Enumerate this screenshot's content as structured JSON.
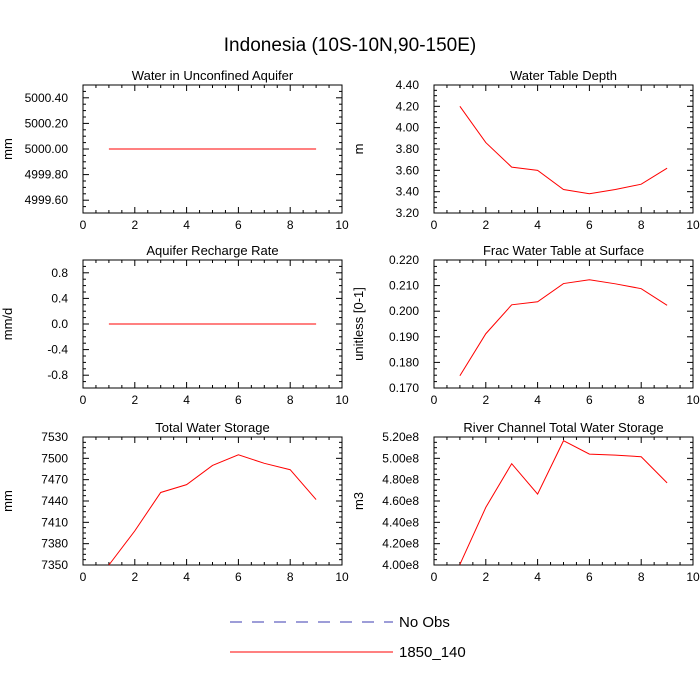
{
  "figure": {
    "title": "Indonesia (10S-10N,90-150E)"
  },
  "legend": {
    "entries": [
      {
        "name": "No Obs",
        "color": "#3b3bb0",
        "dash": "dashed"
      },
      {
        "name": "1850_140",
        "color": "#ff0000",
        "dash": "solid"
      }
    ]
  },
  "chart_data": [
    {
      "type": "line",
      "title": "Water in Unconfined Aquifer",
      "ylabel": "mm",
      "xlim": [
        0,
        10
      ],
      "ylim": [
        4999.5,
        5000.5
      ],
      "xticks": [
        0,
        2,
        4,
        6,
        8,
        10
      ],
      "xtick_labels": [
        "0",
        "2",
        "4",
        "6",
        "8",
        "10"
      ],
      "yticks": [
        4999.6,
        4999.8,
        5000.0,
        5000.2,
        5000.4
      ],
      "ytick_labels": [
        "4999.60",
        "4999.80",
        "5000.00",
        "5000.20",
        "5000.40"
      ],
      "series": [
        {
          "name": "1850_140",
          "color": "#ff0000",
          "x": [
            1,
            2,
            3,
            4,
            5,
            6,
            7,
            8,
            9
          ],
          "y": [
            5000,
            5000,
            5000,
            5000,
            5000,
            5000,
            5000,
            5000,
            5000
          ]
        }
      ]
    },
    {
      "type": "line",
      "title": "Water Table Depth",
      "ylabel": "m",
      "xlim": [
        0,
        10
      ],
      "ylim": [
        3.2,
        4.4
      ],
      "xticks": [
        0,
        2,
        4,
        6,
        8,
        10
      ],
      "xtick_labels": [
        "0",
        "2",
        "4",
        "6",
        "8",
        "10"
      ],
      "yticks": [
        3.2,
        3.4,
        3.6,
        3.8,
        4.0,
        4.2,
        4.4
      ],
      "ytick_labels": [
        "3.20",
        "3.40",
        "3.60",
        "3.80",
        "4.00",
        "4.20",
        "4.40"
      ],
      "series": [
        {
          "name": "1850_140",
          "color": "#ff0000",
          "x": [
            1,
            2,
            3,
            4,
            5,
            6,
            7,
            8,
            9
          ],
          "y": [
            4.2,
            3.86,
            3.63,
            3.6,
            3.42,
            3.38,
            3.42,
            3.47,
            3.62
          ]
        }
      ]
    },
    {
      "type": "line",
      "title": "Aquifer Recharge Rate",
      "ylabel": "mm/d",
      "xlim": [
        0,
        10
      ],
      "ylim": [
        -1.0,
        1.0
      ],
      "xticks": [
        0,
        2,
        4,
        6,
        8,
        10
      ],
      "xtick_labels": [
        "0",
        "2",
        "4",
        "6",
        "8",
        "10"
      ],
      "yticks": [
        -0.8,
        -0.4,
        0.0,
        0.4,
        0.8
      ],
      "ytick_labels": [
        "-0.8",
        "-0.4",
        "0.0",
        "0.4",
        "0.8"
      ],
      "series": [
        {
          "name": "1850_140",
          "color": "#ff0000",
          "x": [
            1,
            2,
            3,
            4,
            5,
            6,
            7,
            8,
            9
          ],
          "y": [
            0,
            0,
            0,
            0,
            0,
            0,
            0,
            0,
            0
          ]
        }
      ]
    },
    {
      "type": "line",
      "title": "Frac Water Table at Surface",
      "ylabel": "unitless [0-1]",
      "xlim": [
        0,
        10
      ],
      "ylim": [
        0.17,
        0.22
      ],
      "xticks": [
        0,
        2,
        4,
        6,
        8,
        10
      ],
      "xtick_labels": [
        "0",
        "2",
        "4",
        "6",
        "8",
        "10"
      ],
      "yticks": [
        0.17,
        0.18,
        0.19,
        0.2,
        0.21,
        0.22
      ],
      "ytick_labels": [
        "0.170",
        "0.180",
        "0.190",
        "0.200",
        "0.210",
        "0.220"
      ],
      "series": [
        {
          "name": "1850_140",
          "color": "#ff0000",
          "x": [
            1,
            2,
            3,
            4,
            5,
            6,
            7,
            8,
            9
          ],
          "y": [
            0.1748,
            0.1912,
            0.2025,
            0.2037,
            0.2108,
            0.2123,
            0.2107,
            0.2088,
            0.2023
          ]
        }
      ]
    },
    {
      "type": "line",
      "title": "Total Water Storage",
      "ylabel": "mm",
      "xlim": [
        0,
        10
      ],
      "ylim": [
        7350,
        7530
      ],
      "xticks": [
        0,
        2,
        4,
        6,
        8,
        10
      ],
      "xtick_labels": [
        "0",
        "2",
        "4",
        "6",
        "8",
        "10"
      ],
      "yticks": [
        7350,
        7380,
        7410,
        7440,
        7470,
        7500,
        7530
      ],
      "ytick_labels": [
        "7350",
        "7380",
        "7410",
        "7440",
        "7470",
        "7500",
        "7530"
      ],
      "series": [
        {
          "name": "1850_140",
          "color": "#ff0000",
          "x": [
            1,
            2,
            3,
            4,
            5,
            6,
            7,
            8,
            9
          ],
          "y": [
            7350,
            7398,
            7452,
            7463,
            7490,
            7505,
            7493,
            7484,
            7442
          ]
        }
      ]
    },
    {
      "type": "line",
      "title": "River Channel Total Water Storage",
      "ylabel": "m3",
      "xlim": [
        0,
        10
      ],
      "ylim": [
        400000000,
        520000000
      ],
      "xticks": [
        0,
        2,
        4,
        6,
        8,
        10
      ],
      "xtick_labels": [
        "0",
        "2",
        "4",
        "6",
        "8",
        "10"
      ],
      "yticks": [
        400000000,
        420000000,
        440000000,
        460000000,
        480000000,
        500000000,
        520000000
      ],
      "ytick_labels": [
        "4.00e8",
        "4.20e8",
        "4.40e8",
        "4.60e8",
        "4.80e8",
        "5.00e8",
        "5.20e8"
      ],
      "series": [
        {
          "name": "1850_140",
          "color": "#ff0000",
          "x": [
            1,
            2,
            3,
            4,
            5,
            6,
            7,
            8,
            9
          ],
          "y": [
            400500000,
            454000000,
            495000000,
            466500000,
            516500000,
            504000000,
            503000000,
            501500000,
            477000000
          ]
        }
      ]
    }
  ]
}
